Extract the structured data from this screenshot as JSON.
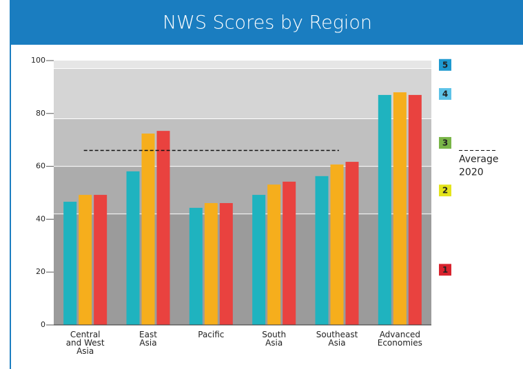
{
  "chart_data": {
    "type": "bar",
    "title": "NWS Scores by Region",
    "categories": [
      [
        "Central",
        "and West",
        "Asia"
      ],
      [
        "East",
        "Asia"
      ],
      [
        "Pacific"
      ],
      [
        "South",
        "Asia"
      ],
      [
        "Southeast",
        "Asia"
      ],
      [
        "Advanced",
        "Economies"
      ]
    ],
    "series": [
      {
        "color": "#1fb3bf",
        "values": [
          46.6,
          58.1,
          44.3,
          49.2,
          56.3,
          87
        ]
      },
      {
        "color": "#f6ae1c",
        "values": [
          49.2,
          72.4,
          46.1,
          53.1,
          60.7,
          88
        ]
      },
      {
        "color": "#e9423f",
        "values": [
          49.2,
          73.4,
          46.1,
          54.2,
          61.7,
          87
        ]
      }
    ],
    "ylim": [
      0,
      100
    ],
    "yticks": [
      0,
      20,
      40,
      60,
      80,
      100
    ],
    "bands": [
      {
        "label": "1",
        "from": 0,
        "to": 42,
        "color": "#9b9b9b",
        "badge_color": "#d8232e",
        "badge_text_color": "#ffffff"
      },
      {
        "label": "2",
        "from": 42,
        "to": 60,
        "color": "#acacac",
        "badge_color": "#e4e41c",
        "badge_text_color": "#222222"
      },
      {
        "label": "3",
        "from": 60,
        "to": 78,
        "color": "#c0c0c0",
        "badge_color": "#79b548",
        "badge_text_color": "#ffffff"
      },
      {
        "label": "4",
        "from": 78,
        "to": 97,
        "color": "#d5d5d5",
        "badge_color": "#5ec3e8",
        "badge_text_color": "#ffffff"
      },
      {
        "label": "5",
        "from": 97,
        "to": 100,
        "color": "#e6e6e6",
        "badge_color": "#1f9ad0",
        "badge_text_color": "#222222"
      }
    ],
    "average": {
      "label": [
        "Average",
        "2020"
      ],
      "value": 66
    }
  }
}
